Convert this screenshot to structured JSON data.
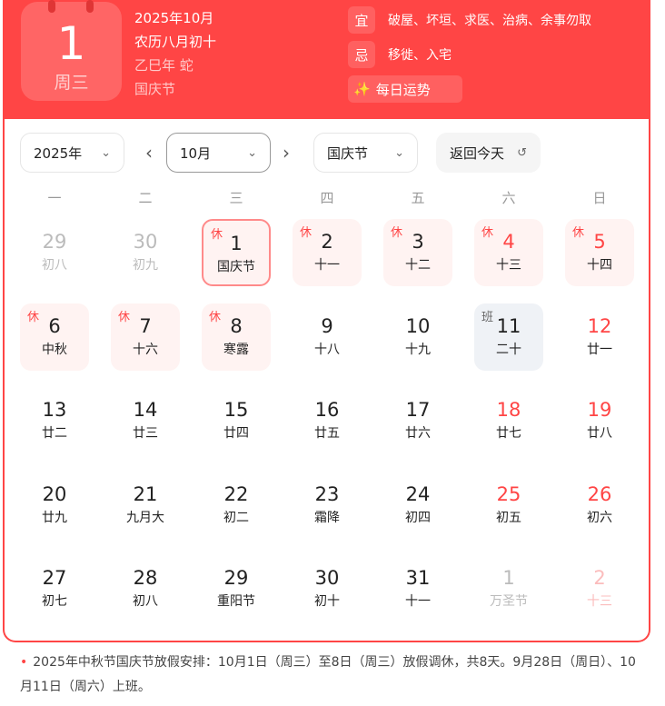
{
  "header": {
    "day": "1",
    "weekday": "周三",
    "date": "2025年10月",
    "lunar": "农历八月初十",
    "ganzhi": "乙巳年 蛇",
    "festival": "国庆节",
    "yi_label": "宜",
    "yi": "破屋、坏垣、求医、治病、余事勿取",
    "ji_label": "忌",
    "ji": "移徙、入宅",
    "fortune_icon": "✨",
    "fortune": "每日运势"
  },
  "controls": {
    "year": "2025年",
    "month": "10月",
    "holiday": "国庆节",
    "today": "返回今天",
    "today_icon": "↺",
    "prev": "‹",
    "next": "›",
    "chev": "⌄"
  },
  "weekdays": [
    "一",
    "二",
    "三",
    "四",
    "五",
    "六",
    "日"
  ],
  "days": [
    {
      "n": "29",
      "l": "初八",
      "s": "other"
    },
    {
      "n": "30",
      "l": "初九",
      "s": "other"
    },
    {
      "n": "1",
      "l": "国庆节",
      "s": "rest sel",
      "b": "休"
    },
    {
      "n": "2",
      "l": "十一",
      "s": "rest",
      "b": "休"
    },
    {
      "n": "3",
      "l": "十二",
      "s": "rest",
      "b": "休"
    },
    {
      "n": "4",
      "l": "十三",
      "s": "rest red",
      "b": "休"
    },
    {
      "n": "5",
      "l": "十四",
      "s": "rest red",
      "b": "休"
    },
    {
      "n": "6",
      "l": "中秋",
      "s": "rest",
      "b": "休"
    },
    {
      "n": "7",
      "l": "十六",
      "s": "rest",
      "b": "休"
    },
    {
      "n": "8",
      "l": "寒露",
      "s": "rest",
      "b": "休"
    },
    {
      "n": "9",
      "l": "十八",
      "s": ""
    },
    {
      "n": "10",
      "l": "十九",
      "s": ""
    },
    {
      "n": "11",
      "l": "二十",
      "s": "work",
      "b": "班"
    },
    {
      "n": "12",
      "l": "廿一",
      "s": "red"
    },
    {
      "n": "13",
      "l": "廿二",
      "s": ""
    },
    {
      "n": "14",
      "l": "廿三",
      "s": ""
    },
    {
      "n": "15",
      "l": "廿四",
      "s": ""
    },
    {
      "n": "16",
      "l": "廿五",
      "s": ""
    },
    {
      "n": "17",
      "l": "廿六",
      "s": ""
    },
    {
      "n": "18",
      "l": "廿七",
      "s": "red"
    },
    {
      "n": "19",
      "l": "廿八",
      "s": "red"
    },
    {
      "n": "20",
      "l": "廿九",
      "s": ""
    },
    {
      "n": "21",
      "l": "九月大",
      "s": ""
    },
    {
      "n": "22",
      "l": "初二",
      "s": ""
    },
    {
      "n": "23",
      "l": "霜降",
      "s": ""
    },
    {
      "n": "24",
      "l": "初四",
      "s": ""
    },
    {
      "n": "25",
      "l": "初五",
      "s": "red"
    },
    {
      "n": "26",
      "l": "初六",
      "s": "red"
    },
    {
      "n": "27",
      "l": "初七",
      "s": ""
    },
    {
      "n": "28",
      "l": "初八",
      "s": ""
    },
    {
      "n": "29",
      "l": "重阳节",
      "s": ""
    },
    {
      "n": "30",
      "l": "初十",
      "s": ""
    },
    {
      "n": "31",
      "l": "十一",
      "s": ""
    },
    {
      "n": "1",
      "l": "万圣节",
      "s": "other"
    },
    {
      "n": "2",
      "l": "十三",
      "s": "nextred"
    }
  ],
  "note": "2025年中秋节国庆节放假安排：10月1日（周三）至8日（周三）放假调休，共8天。9月28日（周日）、10月11日（周六）上班。"
}
